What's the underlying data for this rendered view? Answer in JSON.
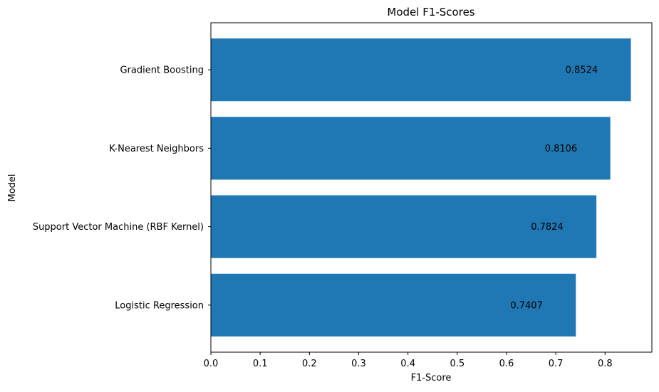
{
  "chart_data": {
    "type": "bar",
    "orientation": "horizontal",
    "title": "Model F1-Scores",
    "xlabel": "F1-Score",
    "ylabel": "Model",
    "categories": [
      "Logistic Regression",
      "Support Vector Machine (RBF Kernel)",
      "K-Nearest Neighbors",
      "Gradient Boosting"
    ],
    "values": [
      0.7407,
      0.7824,
      0.8106,
      0.8524
    ],
    "value_labels": [
      "0.7407",
      "0.7824",
      "0.8106",
      "0.8524"
    ],
    "xlim": [
      0,
      0.895
    ],
    "xticks": [
      0.0,
      0.1,
      0.2,
      0.3,
      0.4,
      0.5,
      0.6,
      0.7,
      0.8
    ],
    "xtick_labels": [
      "0.0",
      "0.1",
      "0.2",
      "0.3",
      "0.4",
      "0.5",
      "0.6",
      "0.7",
      "0.8"
    ],
    "bar_color": "#1f77b4",
    "grid": false,
    "legend": "none"
  }
}
